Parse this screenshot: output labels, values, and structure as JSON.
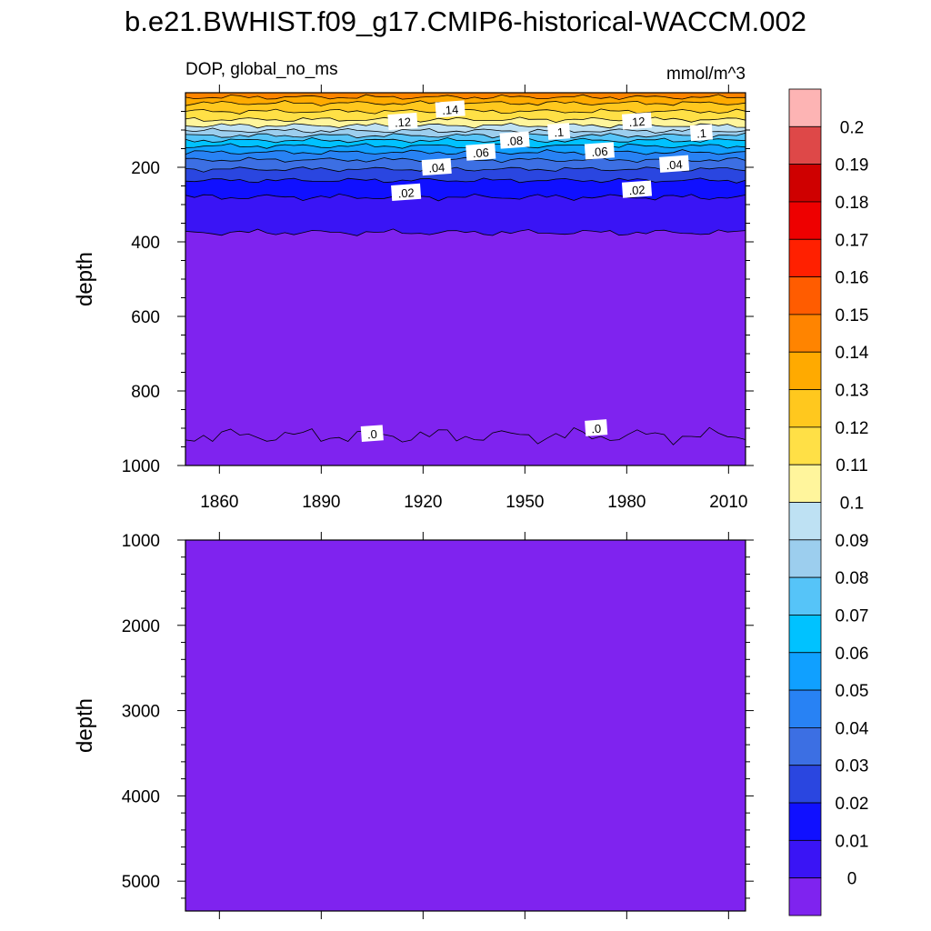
{
  "chart_data": {
    "type": "contour",
    "title": "b.e21.BWHIST.f09_g17.CMIP6-historical-WACCM.002",
    "variable_label": "DOP, global_no_ms",
    "units": "mmol/m^3",
    "panels": [
      {
        "name": "upper",
        "ylabel": "depth",
        "ylim": [
          0,
          1000
        ],
        "y_inverted": true,
        "y_ticks": [
          "200",
          "400",
          "600",
          "800",
          "1000"
        ],
        "xlim": [
          1850,
          2015
        ],
        "x_ticks": [
          "1860",
          "1890",
          "1920",
          "1950",
          "1980",
          "2010"
        ],
        "level_depths": [
          {
            "level": 0.15,
            "depth": 12
          },
          {
            "level": 0.14,
            "depth": 28
          },
          {
            "level": 0.13,
            "depth": 50
          },
          {
            "level": 0.12,
            "depth": 72
          },
          {
            "level": 0.11,
            "depth": 88
          },
          {
            "level": 0.1,
            "depth": 102
          },
          {
            "level": 0.09,
            "depth": 115
          },
          {
            "level": 0.08,
            "depth": 128
          },
          {
            "level": 0.07,
            "depth": 143
          },
          {
            "level": 0.06,
            "depth": 160
          },
          {
            "level": 0.05,
            "depth": 180
          },
          {
            "level": 0.04,
            "depth": 205
          },
          {
            "level": 0.03,
            "depth": 235
          },
          {
            "level": 0.02,
            "depth": 280
          },
          {
            "level": 0.01,
            "depth": 375
          },
          {
            "level": 0.0,
            "depth": 920
          }
        ],
        "contour_labels": [
          {
            "text": ".14",
            "year": 1928,
            "depth": 45
          },
          {
            "text": ".12",
            "year": 1914,
            "depth": 78
          },
          {
            "text": ".12",
            "year": 1983,
            "depth": 77
          },
          {
            "text": ".1",
            "year": 1960,
            "depth": 105
          },
          {
            "text": ".1",
            "year": 2002,
            "depth": 108
          },
          {
            "text": ".08",
            "year": 1947,
            "depth": 128
          },
          {
            "text": ".06",
            "year": 1937,
            "depth": 160
          },
          {
            "text": ".06",
            "year": 1972,
            "depth": 157
          },
          {
            "text": ".04",
            "year": 1924,
            "depth": 200
          },
          {
            "text": ".04",
            "year": 1994,
            "depth": 192
          },
          {
            "text": ".02",
            "year": 1915,
            "depth": 268
          },
          {
            "text": ".02",
            "year": 1983,
            "depth": 260
          },
          {
            "text": ".0",
            "year": 1905,
            "depth": 915
          },
          {
            "text": ".0",
            "year": 1971,
            "depth": 900
          }
        ]
      },
      {
        "name": "lower",
        "ylabel": "depth",
        "ylim": [
          1000,
          5350
        ],
        "y_inverted": true,
        "y_ticks": [
          "1000",
          "2000",
          "3000",
          "4000",
          "5000"
        ],
        "uniform_bin": "0"
      }
    ],
    "colorbar": {
      "levels": [
        "0.2",
        "0.19",
        "0.18",
        "0.17",
        "0.16",
        "0.15",
        "0.14",
        "0.13",
        "0.12",
        "0.11",
        "0.1",
        "0.09",
        "0.08",
        "0.07",
        "0.06",
        "0.05",
        "0.04",
        "0.03",
        "0.02",
        "0.01",
        "0"
      ],
      "colors": [
        "#FDB4B4",
        "#DE4848",
        "#CF0000",
        "#EE0000",
        "#FF2000",
        "#FF5C00",
        "#FF8400",
        "#FFAA00",
        "#FFC81E",
        "#FFE046",
        "#FFF59C",
        "#BEE1F3",
        "#9CCEEE",
        "#56C4F8",
        "#00C2FF",
        "#10A0FF",
        "#2882F4",
        "#3C6FE3",
        "#2A46E0",
        "#1010FF",
        "#3A14F5",
        "#7F23EF"
      ]
    }
  }
}
